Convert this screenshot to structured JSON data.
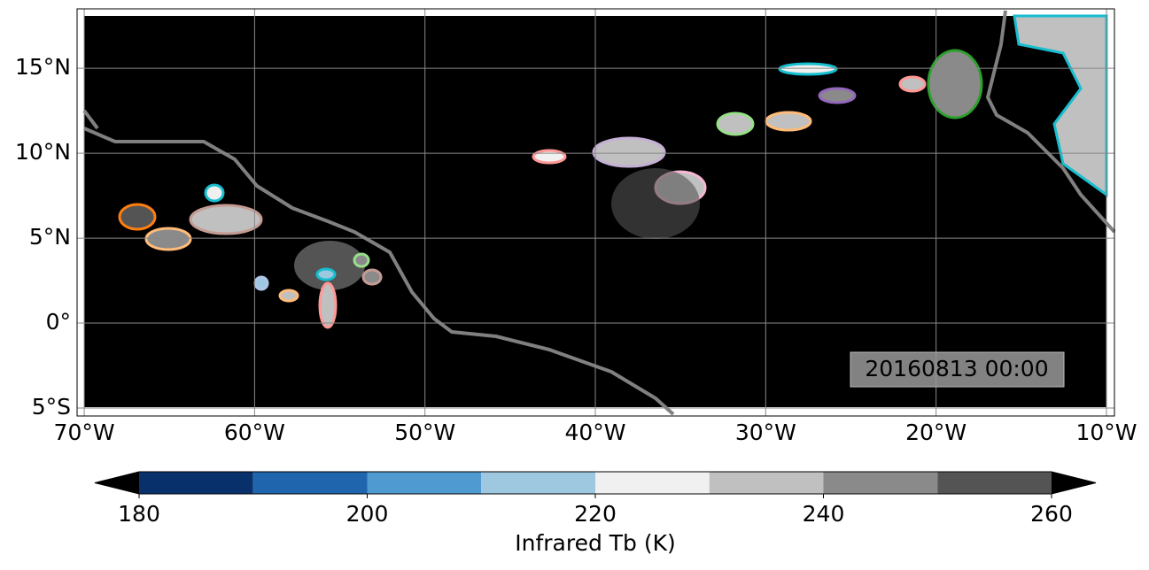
{
  "map": {
    "xlim": [
      -70.42,
      -9.53
    ],
    "ylim": [
      -5.47,
      18.5
    ],
    "xticks": [
      {
        "value": -70,
        "label": "70°W"
      },
      {
        "value": -60,
        "label": "60°W"
      },
      {
        "value": -50,
        "label": "50°W"
      },
      {
        "value": -40,
        "label": "40°W"
      },
      {
        "value": -30,
        "label": "30°W"
      },
      {
        "value": -20,
        "label": "20°W"
      },
      {
        "value": -10,
        "label": "10°W"
      }
    ],
    "yticks": [
      {
        "value": -5,
        "label": "5°S"
      },
      {
        "value": 0,
        "label": "0°"
      },
      {
        "value": 5,
        "label": "5°N"
      },
      {
        "value": 10,
        "label": "10°N"
      },
      {
        "value": 15,
        "label": "15°N"
      }
    ],
    "grid": true,
    "timestamp": "20160813 00:00"
  },
  "colorbar": {
    "label": "Infrared Tb (K)",
    "levels": [
      180,
      190,
      200,
      210,
      220,
      230,
      240,
      250,
      260
    ],
    "colors": [
      "#08306b",
      "#1f65ad",
      "#4f9ad0",
      "#9ec8e0",
      "#f0f0f0",
      "#c0c0c0",
      "#8a8a8a",
      "#545454"
    ],
    "extend_colors": [
      "#000000",
      "#000000"
    ],
    "ticks": [
      180,
      200,
      220,
      240,
      260
    ]
  }
}
